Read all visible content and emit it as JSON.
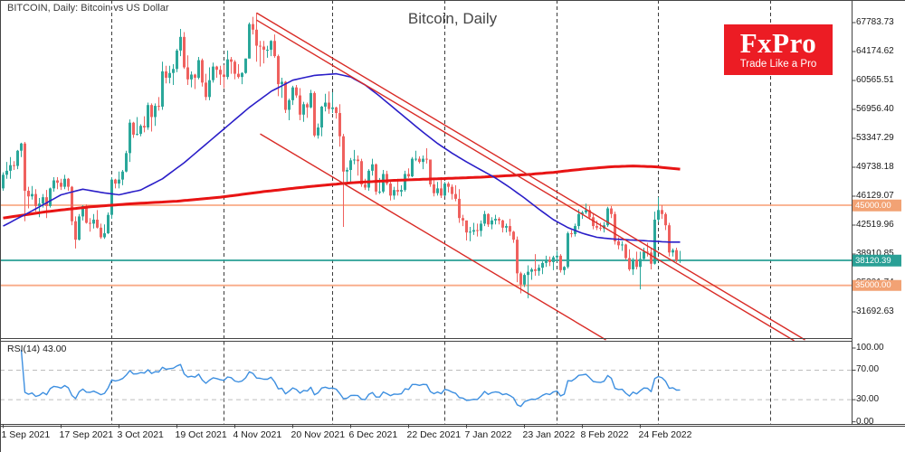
{
  "window": {
    "symbol_label": "BITCOIN, Daily: Bitcoin vs US Dollar",
    "watermark_title": "Bitcoin, Daily"
  },
  "logo": {
    "brand": "FxPro",
    "tagline": "Trade Like a Pro",
    "bg_color": "#ec1c24",
    "text_color": "#ffffff"
  },
  "price_axis": {
    "labels": [
      "67783.73",
      "64174.62",
      "60565.51",
      "56956.40",
      "53347.29",
      "49738.18",
      "46129.07",
      "42519.96",
      "38910.85",
      "35301.74",
      "31692.63"
    ],
    "top_value": 67783.73,
    "step_value": 3609.11
  },
  "price_levels": [
    {
      "value": 45000.0,
      "label": "45000.00",
      "line_color": "#f9ab87",
      "badge_color": "#f2a274"
    },
    {
      "value": 38120.39,
      "label": "38120.39",
      "line_color": "#2aa096",
      "badge_color": "#2aa096"
    },
    {
      "value": 35000.0,
      "label": "35000.00",
      "line_color": "#f9ab87",
      "badge_color": "#f2a274"
    }
  ],
  "rsi": {
    "label": "RSI(14) 43.00",
    "period": 14,
    "current_value": 43.0,
    "axis_labels": [
      "100.00",
      "70.00",
      "30.00",
      "0.00"
    ],
    "axis_values": [
      100,
      70,
      30,
      0
    ],
    "guide_levels": [
      70,
      30
    ],
    "line_color": "#3d8fe0"
  },
  "time_axis": {
    "labels": [
      "1 Sep 2021",
      "17 Sep 2021",
      "3 Oct 2021",
      "19 Oct 2021",
      "4 Nov 2021",
      "20 Nov 2021",
      "6 Dec 2021",
      "22 Dec 2021",
      "7 Jan 2022",
      "23 Jan 2022",
      "8 Feb 2022",
      "24 Feb 2022"
    ],
    "label_days": [
      0,
      16,
      32,
      48,
      64,
      80,
      96,
      112,
      128,
      144,
      160,
      176
    ],
    "month_grid_days": [
      30,
      61,
      91,
      122,
      153,
      181,
      212
    ]
  },
  "chart_data": {
    "type": "candlestick",
    "symbol": "BITCOIN",
    "timeframe": "Daily",
    "start_date": "2021-09-01",
    "unit": "USD (values in thousands)",
    "last_price": 38120.39,
    "ylim": [
      31692.63,
      67783.73
    ],
    "colors": {
      "bull": "#2aa79a",
      "bear": "#ef615e",
      "ma_fast": "#2a1ec8",
      "ma_slow": "#e81414",
      "trendline": "#d92b26",
      "grid": "#3c3c3c"
    },
    "candles": [
      [
        47.1,
        49.1,
        46.8,
        48.8
      ],
      [
        48.8,
        50.4,
        48.3,
        49.3
      ],
      [
        49.3,
        51.0,
        48.3,
        50.0
      ],
      [
        50.0,
        50.5,
        49.4,
        49.9
      ],
      [
        49.9,
        51.9,
        49.5,
        51.8
      ],
      [
        51.8,
        52.8,
        51.0,
        52.7
      ],
      [
        52.7,
        52.9,
        43.0,
        46.8
      ],
      [
        46.8,
        47.3,
        44.6,
        46.1
      ],
      [
        46.1,
        47.4,
        45.7,
        46.4
      ],
      [
        46.4,
        47.0,
        44.2,
        44.9
      ],
      [
        44.9,
        45.9,
        43.5,
        45.2
      ],
      [
        45.2,
        46.4,
        44.7,
        46.0
      ],
      [
        46.0,
        46.9,
        43.4,
        44.9
      ],
      [
        44.9,
        47.2,
        44.7,
        47.1
      ],
      [
        47.1,
        48.5,
        46.7,
        48.1
      ],
      [
        48.1,
        48.5,
        47.0,
        47.8
      ],
      [
        47.8,
        48.3,
        46.9,
        47.3
      ],
      [
        47.3,
        48.8,
        47.0,
        48.3
      ],
      [
        48.3,
        48.4,
        46.8,
        47.3
      ],
      [
        47.3,
        47.4,
        42.5,
        43.0
      ],
      [
        43.0,
        43.6,
        39.6,
        40.7
      ],
      [
        40.7,
        43.9,
        40.6,
        43.6
      ],
      [
        43.6,
        45.0,
        43.1,
        44.9
      ],
      [
        44.9,
        45.1,
        42.7,
        42.8
      ],
      [
        42.8,
        43.4,
        41.7,
        42.7
      ],
      [
        42.7,
        43.9,
        42.1,
        43.2
      ],
      [
        43.2,
        44.4,
        42.1,
        42.2
      ],
      [
        42.2,
        42.7,
        40.8,
        41.0
      ],
      [
        41.0,
        42.6,
        40.8,
        41.5
      ],
      [
        41.5,
        44.1,
        41.4,
        43.8
      ],
      [
        43.8,
        48.5,
        43.3,
        48.2
      ],
      [
        48.2,
        48.3,
        47.1,
        47.7
      ],
      [
        47.7,
        49.2,
        47.1,
        48.2
      ],
      [
        48.2,
        49.4,
        47.5,
        49.2
      ],
      [
        49.2,
        51.8,
        49.1,
        51.5
      ],
      [
        51.5,
        55.7,
        50.4,
        55.3
      ],
      [
        55.3,
        55.4,
        53.4,
        53.8
      ],
      [
        53.8,
        56.0,
        53.7,
        53.9
      ],
      [
        53.9,
        55.1,
        53.6,
        54.9
      ],
      [
        54.9,
        56.1,
        54.1,
        54.7
      ],
      [
        54.7,
        57.8,
        54.4,
        57.5
      ],
      [
        57.5,
        57.7,
        54.2,
        56.0
      ],
      [
        56.0,
        57.7,
        54.9,
        57.4
      ],
      [
        57.4,
        58.5,
        56.8,
        57.3
      ],
      [
        57.3,
        62.9,
        56.9,
        61.7
      ],
      [
        61.7,
        62.4,
        60.2,
        60.9
      ],
      [
        60.9,
        62.4,
        60.2,
        61.5
      ],
      [
        61.5,
        62.6,
        60.0,
        62.0
      ],
      [
        62.0,
        64.5,
        61.6,
        64.3
      ],
      [
        64.3,
        67.0,
        63.6,
        66.0
      ],
      [
        66.0,
        66.6,
        62.0,
        62.2
      ],
      [
        62.2,
        63.7,
        60.0,
        60.7
      ],
      [
        60.7,
        61.7,
        59.7,
        61.3
      ],
      [
        61.3,
        61.4,
        59.5,
        60.9
      ],
      [
        60.9,
        63.5,
        60.7,
        63.1
      ],
      [
        63.1,
        63.3,
        59.8,
        60.3
      ],
      [
        60.3,
        61.4,
        58.1,
        58.5
      ],
      [
        58.5,
        62.2,
        58.1,
        60.6
      ],
      [
        60.6,
        62.8,
        60.3,
        62.3
      ],
      [
        62.3,
        62.4,
        60.9,
        61.9
      ],
      [
        61.9,
        62.4,
        60.0,
        61.3
      ],
      [
        61.3,
        62.5,
        59.6,
        61.0
      ],
      [
        61.0,
        64.3,
        60.7,
        63.2
      ],
      [
        63.2,
        63.5,
        61.4,
        62.9
      ],
      [
        62.9,
        63.1,
        60.7,
        61.4
      ],
      [
        61.4,
        62.6,
        60.8,
        61.0
      ],
      [
        61.0,
        61.6,
        60.1,
        61.5
      ],
      [
        61.5,
        63.3,
        61.4,
        63.3
      ],
      [
        63.3,
        67.8,
        63.3,
        67.6
      ],
      [
        67.6,
        68.5,
        66.3,
        66.9
      ],
      [
        66.9,
        69.0,
        62.9,
        64.9
      ],
      [
        64.9,
        65.5,
        62.3,
        64.8
      ],
      [
        64.8,
        65.5,
        62.7,
        64.4
      ],
      [
        64.4,
        64.9,
        63.4,
        64.4
      ],
      [
        64.4,
        65.6,
        63.6,
        65.5
      ],
      [
        65.5,
        66.3,
        63.4,
        63.6
      ],
      [
        63.6,
        63.8,
        58.6,
        60.1
      ],
      [
        60.1,
        60.9,
        58.4,
        60.4
      ],
      [
        60.4,
        60.5,
        56.5,
        56.9
      ],
      [
        56.9,
        58.3,
        55.6,
        58.1
      ],
      [
        58.1,
        59.9,
        57.5,
        59.7
      ],
      [
        59.7,
        60.0,
        58.4,
        58.7
      ],
      [
        58.7,
        59.6,
        55.6,
        56.3
      ],
      [
        56.3,
        57.9,
        55.4,
        57.6
      ],
      [
        57.6,
        57.8,
        55.9,
        57.2
      ],
      [
        57.2,
        59.4,
        57.1,
        59.0
      ],
      [
        59.0,
        59.2,
        53.5,
        53.7
      ],
      [
        53.7,
        55.2,
        53.3,
        54.7
      ],
      [
        54.7,
        57.4,
        53.6,
        57.3
      ],
      [
        57.3,
        58.9,
        56.7,
        57.8
      ],
      [
        57.8,
        59.2,
        56.4,
        57.0
      ],
      [
        57.0,
        59.1,
        56.5,
        57.2
      ],
      [
        57.2,
        57.3,
        55.8,
        56.5
      ],
      [
        56.5,
        57.6,
        52.3,
        53.6
      ],
      [
        53.6,
        53.9,
        42.3,
        49.2
      ],
      [
        49.2,
        49.7,
        47.7,
        49.4
      ],
      [
        49.4,
        50.9,
        47.8,
        50.6
      ],
      [
        50.6,
        51.9,
        50.1,
        50.7
      ],
      [
        50.7,
        51.2,
        48.7,
        50.5
      ],
      [
        50.5,
        50.8,
        47.3,
        47.6
      ],
      [
        47.6,
        48.3,
        46.9,
        47.2
      ],
      [
        47.2,
        49.5,
        46.8,
        49.3
      ],
      [
        49.3,
        50.8,
        48.7,
        50.1
      ],
      [
        50.1,
        50.2,
        46.3,
        46.7
      ],
      [
        46.7,
        48.4,
        46.4,
        46.7
      ],
      [
        46.7,
        49.4,
        46.5,
        48.9
      ],
      [
        48.9,
        49.3,
        47.5,
        47.7
      ],
      [
        47.7,
        47.9,
        45.6,
        46.2
      ],
      [
        46.2,
        47.3,
        45.7,
        46.9
      ],
      [
        46.9,
        48.3,
        46.2,
        46.7
      ],
      [
        46.7,
        47.5,
        46.1,
        46.9
      ],
      [
        46.9,
        49.3,
        46.7,
        48.9
      ],
      [
        48.9,
        49.6,
        48.4,
        48.6
      ],
      [
        48.6,
        51.0,
        48.5,
        50.8
      ],
      [
        50.8,
        51.8,
        50.5,
        50.8
      ],
      [
        50.8,
        51.1,
        50.2,
        50.4
      ],
      [
        50.4,
        51.2,
        49.5,
        50.8
      ],
      [
        50.8,
        52.1,
        50.2,
        50.7
      ],
      [
        50.7,
        50.7,
        47.3,
        47.6
      ],
      [
        47.6,
        48.1,
        46.1,
        46.5
      ],
      [
        46.5,
        47.9,
        46.2,
        47.1
      ],
      [
        47.1,
        48.5,
        45.9,
        46.2
      ],
      [
        46.2,
        47.9,
        46.1,
        47.7
      ],
      [
        47.7,
        47.9,
        46.6,
        47.3
      ],
      [
        47.3,
        47.6,
        45.7,
        46.4
      ],
      [
        46.4,
        47.5,
        45.5,
        45.8
      ],
      [
        45.8,
        47.0,
        42.8,
        43.4
      ],
      [
        43.4,
        43.8,
        42.4,
        43.1
      ],
      [
        43.1,
        43.1,
        40.6,
        41.6
      ],
      [
        41.6,
        42.3,
        40.5,
        41.7
      ],
      [
        41.7,
        42.8,
        41.3,
        41.9
      ],
      [
        41.9,
        42.7,
        41.1,
        41.8
      ],
      [
        41.8,
        43.1,
        41.1,
        42.7
      ],
      [
        42.7,
        44.3,
        42.4,
        43.9
      ],
      [
        43.9,
        44.0,
        42.3,
        42.6
      ],
      [
        42.6,
        43.5,
        42.0,
        43.1
      ],
      [
        43.1,
        43.8,
        42.6,
        43.3
      ],
      [
        43.3,
        43.5,
        42.6,
        43.1
      ],
      [
        43.1,
        43.2,
        41.6,
        42.2
      ],
      [
        42.2,
        42.7,
        41.6,
        42.4
      ],
      [
        42.4,
        43.3,
        41.2,
        41.7
      ],
      [
        41.7,
        41.8,
        40.3,
        40.7
      ],
      [
        40.7,
        41.1,
        35.4,
        36.5
      ],
      [
        36.5,
        36.7,
        34.0,
        35.1
      ],
      [
        35.1,
        36.5,
        34.8,
        36.3
      ],
      [
        36.3,
        37.5,
        33.4,
        36.7
      ],
      [
        36.7,
        37.2,
        35.7,
        37.0
      ],
      [
        37.0,
        38.9,
        36.2,
        36.8
      ],
      [
        36.8,
        37.6,
        36.2,
        37.2
      ],
      [
        37.2,
        38.0,
        36.4,
        37.8
      ],
      [
        37.8,
        38.7,
        37.3,
        38.2
      ],
      [
        38.2,
        38.6,
        37.4,
        37.9
      ],
      [
        37.9,
        38.7,
        36.9,
        38.5
      ],
      [
        38.5,
        39.3,
        38.0,
        38.7
      ],
      [
        38.7,
        38.9,
        36.6,
        36.9
      ],
      [
        36.9,
        37.4,
        36.3,
        37.3
      ],
      [
        37.3,
        41.7,
        37.1,
        41.5
      ],
      [
        41.5,
        41.9,
        41.0,
        41.4
      ],
      [
        41.4,
        42.7,
        41.1,
        42.4
      ],
      [
        42.4,
        44.5,
        42.0,
        43.9
      ],
      [
        43.9,
        44.3,
        43.3,
        44.1
      ],
      [
        44.1,
        45.2,
        43.9,
        44.4
      ],
      [
        44.4,
        44.9,
        43.2,
        43.5
      ],
      [
        43.5,
        43.9,
        42.0,
        42.4
      ],
      [
        42.4,
        43.1,
        41.9,
        42.2
      ],
      [
        42.2,
        42.8,
        41.8,
        42.1
      ],
      [
        42.1,
        42.9,
        41.6,
        42.5
      ],
      [
        42.5,
        44.8,
        42.3,
        44.6
      ],
      [
        44.6,
        44.9,
        43.4,
        43.9
      ],
      [
        43.9,
        44.2,
        40.1,
        40.5
      ],
      [
        40.5,
        41.0,
        39.5,
        40.0
      ],
      [
        40.0,
        40.5,
        39.3,
        40.1
      ],
      [
        40.1,
        40.2,
        38.2,
        38.4
      ],
      [
        38.4,
        39.5,
        36.8,
        37.0
      ],
      [
        37.0,
        38.4,
        36.3,
        38.2
      ],
      [
        38.2,
        39.2,
        37.0,
        37.3
      ],
      [
        37.3,
        39.2,
        34.5,
        38.3
      ],
      [
        38.3,
        39.7,
        38.1,
        39.2
      ],
      [
        39.2,
        40.3,
        38.6,
        39.1
      ],
      [
        39.1,
        39.7,
        37.0,
        37.7
      ],
      [
        37.7,
        44.2,
        37.6,
        43.2
      ],
      [
        43.2,
        46.0,
        42.9,
        44.4
      ],
      [
        44.4,
        45.0,
        43.3,
        43.9
      ],
      [
        43.9,
        44.1,
        41.9,
        42.5
      ],
      [
        42.5,
        42.8,
        38.6,
        39.1
      ],
      [
        39.1,
        39.6,
        38.6,
        39.4
      ],
      [
        39.4,
        39.7,
        37.9,
        38.1
      ],
      [
        38.1,
        39.3,
        37.8,
        38.12
      ]
    ],
    "ma_fast_anchors": [
      [
        0,
        42.4
      ],
      [
        8,
        44.3
      ],
      [
        16,
        46.3
      ],
      [
        22,
        47.0
      ],
      [
        27,
        46.6
      ],
      [
        32,
        46.3
      ],
      [
        38,
        46.9
      ],
      [
        44,
        48.3
      ],
      [
        50,
        50.3
      ],
      [
        56,
        52.6
      ],
      [
        62,
        54.9
      ],
      [
        68,
        57.2
      ],
      [
        74,
        59.2
      ],
      [
        80,
        60.6
      ],
      [
        86,
        61.2
      ],
      [
        92,
        61.4
      ],
      [
        96,
        61.0
      ],
      [
        100,
        60.0
      ],
      [
        104,
        58.6
      ],
      [
        108,
        57.1
      ],
      [
        112,
        55.6
      ],
      [
        116,
        54.1
      ],
      [
        120,
        52.7
      ],
      [
        124,
        51.5
      ],
      [
        128,
        50.4
      ],
      [
        132,
        49.4
      ],
      [
        136,
        48.4
      ],
      [
        140,
        47.2
      ],
      [
        144,
        45.9
      ],
      [
        148,
        44.5
      ],
      [
        152,
        43.2
      ],
      [
        156,
        42.2
      ],
      [
        160,
        41.5
      ],
      [
        164,
        41.0
      ],
      [
        168,
        40.8
      ],
      [
        172,
        40.7
      ],
      [
        176,
        40.6
      ],
      [
        180,
        40.5
      ],
      [
        184,
        40.4
      ],
      [
        187,
        40.4
      ]
    ],
    "ma_slow_anchors": [
      [
        0,
        43.4
      ],
      [
        12,
        44.2
      ],
      [
        24,
        44.8
      ],
      [
        36,
        45.2
      ],
      [
        48,
        45.5
      ],
      [
        60,
        46.0
      ],
      [
        72,
        46.7
      ],
      [
        84,
        47.3
      ],
      [
        96,
        47.8
      ],
      [
        108,
        48.1
      ],
      [
        120,
        48.3
      ],
      [
        132,
        48.5
      ],
      [
        144,
        48.8
      ],
      [
        152,
        49.1
      ],
      [
        160,
        49.5
      ],
      [
        168,
        49.8
      ],
      [
        174,
        49.9
      ],
      [
        180,
        49.8
      ],
      [
        187,
        49.5
      ]
    ],
    "trendlines": [
      {
        "day1": 70,
        "value1": 69.0,
        "day2": 221.5,
        "value2": 28.2
      },
      {
        "day1": 70,
        "value1": 68.1,
        "day2": 218.5,
        "value2": 28.1
      },
      {
        "day1": 71,
        "value1": 53.9,
        "day2": 166.5,
        "value2": 28.2
      }
    ]
  }
}
